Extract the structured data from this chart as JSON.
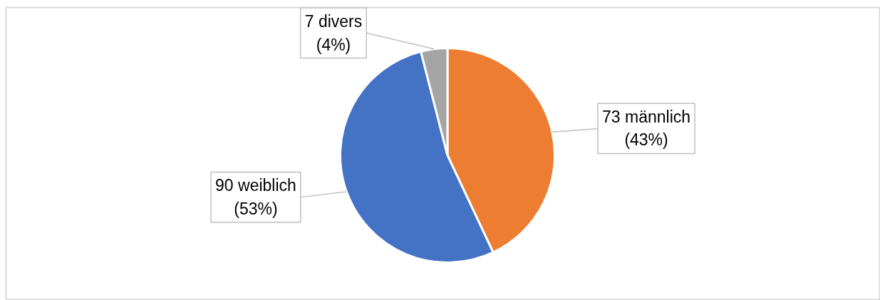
{
  "chart_data": {
    "type": "pie",
    "categories": [
      "73 männlich",
      "90 weiblich",
      "7 divers"
    ],
    "values": [
      43,
      53,
      4
    ],
    "colors": [
      "#ed7d31",
      "#4472c4",
      "#a5a5a5"
    ],
    "value_labels": [
      "(43%)",
      "(53%)",
      "(4%)"
    ]
  }
}
